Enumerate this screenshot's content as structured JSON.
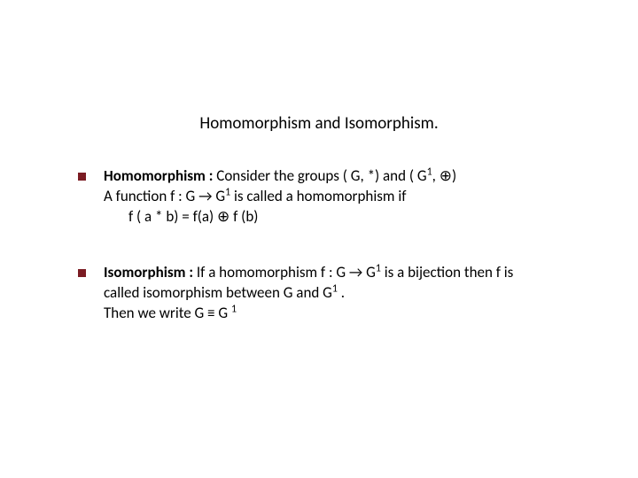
{
  "title": "Homomorphism and Isomorphism.",
  "bullet_color": "#7b1c23",
  "text_color": "#000000",
  "background_color": "#ffffff",
  "font_family": "Calibri",
  "title_fontsize": 19,
  "body_fontsize": 17,
  "items": [
    {
      "term": "Homomorphism : ",
      "line1_rest": "Consider the groups  ( G,  *)  and ( G",
      "line1_sup": "1",
      "line1_tail": ", ⊕)",
      "line2_a": "A function  f : G → G",
      "line2_sup": "1",
      "line2_b": " is called a homomorphism if",
      "line3": "f ( a * b) = f(a) ⊕ f (b)"
    },
    {
      "term": "Isomorphism : ",
      "line1_rest": "If a homomorphism f : G → G",
      "line1_sup": "1",
      "line1_tail": "  is a bijection then f is",
      "line2_a": "called isomorphism between G and G",
      "line2_sup": "1",
      "line2_b": " .",
      "line3_a": "Then  we write   G  ≡ G ",
      "line3_sup": "1"
    }
  ]
}
